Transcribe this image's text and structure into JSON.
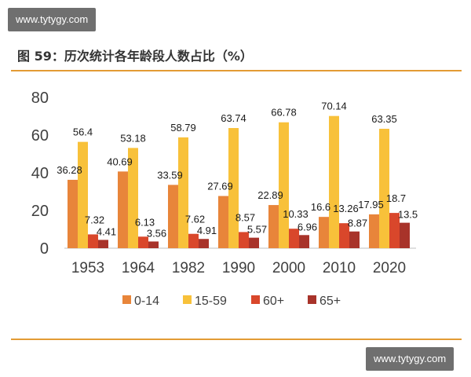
{
  "watermark": "www.tytygy.com",
  "title": "图 59：历次统计各年龄段人数占比（%）",
  "chart_data": {
    "type": "bar",
    "categories": [
      "1953",
      "1964",
      "1982",
      "1990",
      "2000",
      "2010",
      "2020"
    ],
    "series": [
      {
        "name": "0-14",
        "color": "#e8853a",
        "values": [
          36.28,
          40.69,
          33.59,
          27.69,
          22.89,
          16.6,
          17.95
        ]
      },
      {
        "name": "15-59",
        "color": "#f8c13a",
        "values": [
          56.4,
          53.18,
          58.79,
          63.74,
          66.78,
          70.14,
          63.35
        ]
      },
      {
        "name": "60+",
        "color": "#d9472b",
        "values": [
          7.32,
          6.13,
          7.62,
          8.57,
          10.33,
          13.26,
          18.7
        ]
      },
      {
        "name": "65+",
        "color": "#a8332a",
        "values": [
          4.41,
          3.56,
          4.91,
          5.57,
          6.96,
          8.87,
          13.5
        ]
      }
    ],
    "yticks": [
      "0",
      "20",
      "40",
      "60",
      "80"
    ],
    "ylim": [
      0,
      80
    ],
    "grid": false,
    "legend_position": "bottom"
  }
}
